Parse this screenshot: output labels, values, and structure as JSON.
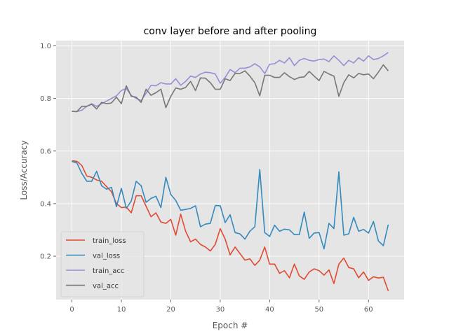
{
  "chart_data": {
    "type": "line",
    "title": "conv layer before and after pooling",
    "xlabel": "Epoch #",
    "ylabel": "Loss/Accuracy",
    "xlim": [
      -3.2,
      67.2
    ],
    "ylim": [
      0.035,
      1.02
    ],
    "xticks": [
      0,
      10,
      20,
      30,
      40,
      50,
      60
    ],
    "yticks": [
      0.2,
      0.4,
      0.6,
      0.8,
      1.0
    ],
    "ytick_labels": [
      "0.2",
      "0.4",
      "0.6",
      "0.8",
      "1.0"
    ],
    "grid": true,
    "legend_position": "lower-left",
    "x": [
      0,
      1,
      2,
      3,
      4,
      5,
      6,
      7,
      8,
      9,
      10,
      11,
      12,
      13,
      14,
      15,
      16,
      17,
      18,
      19,
      20,
      21,
      22,
      23,
      24,
      25,
      26,
      27,
      28,
      29,
      30,
      31,
      32,
      33,
      34,
      35,
      36,
      37,
      38,
      39,
      40,
      41,
      42,
      43,
      44,
      45,
      46,
      47,
      48,
      49,
      50,
      51,
      52,
      53,
      54,
      55,
      56,
      57,
      58,
      59,
      60,
      61,
      62,
      63,
      64
    ],
    "series": [
      {
        "name": "train_loss",
        "color": "#E24A33",
        "values": [
          0.563,
          0.561,
          0.545,
          0.505,
          0.5,
          0.49,
          0.485,
          0.465,
          0.445,
          0.4,
          0.385,
          0.387,
          0.365,
          0.43,
          0.43,
          0.39,
          0.35,
          0.365,
          0.33,
          0.325,
          0.34,
          0.28,
          0.36,
          0.295,
          0.255,
          0.265,
          0.245,
          0.235,
          0.22,
          0.245,
          0.305,
          0.265,
          0.205,
          0.235,
          0.21,
          0.185,
          0.19,
          0.165,
          0.185,
          0.235,
          0.17,
          0.17,
          0.135,
          0.145,
          0.118,
          0.17,
          0.125,
          0.112,
          0.14,
          0.152,
          0.145,
          0.128,
          0.148,
          0.096,
          0.17,
          0.193,
          0.157,
          0.152,
          0.118,
          0.14,
          0.108,
          0.122,
          0.117,
          0.12,
          0.068
        ]
      },
      {
        "name": "val_loss",
        "color": "#348ABD",
        "values": [
          0.56,
          0.555,
          0.515,
          0.485,
          0.485,
          0.523,
          0.468,
          0.455,
          0.462,
          0.388,
          0.458,
          0.382,
          0.41,
          0.485,
          0.468,
          0.405,
          0.42,
          0.428,
          0.385,
          0.5,
          0.435,
          0.412,
          0.375,
          0.378,
          0.382,
          0.392,
          0.312,
          0.322,
          0.325,
          0.393,
          0.392,
          0.328,
          0.358,
          0.29,
          0.285,
          0.265,
          0.295,
          0.312,
          0.53,
          0.29,
          0.275,
          0.318,
          0.295,
          0.303,
          0.3,
          0.282,
          0.282,
          0.368,
          0.268,
          0.288,
          0.29,
          0.228,
          0.325,
          0.305,
          0.521,
          0.28,
          0.285,
          0.348,
          0.295,
          0.302,
          0.288,
          0.332,
          0.258,
          0.24,
          0.32
        ]
      },
      {
        "name": "train_acc",
        "color": "#988ED5",
        "values": [
          0.751,
          0.75,
          0.755,
          0.77,
          0.78,
          0.77,
          0.78,
          0.79,
          0.8,
          0.81,
          0.83,
          0.838,
          0.812,
          0.8,
          0.792,
          0.82,
          0.85,
          0.848,
          0.86,
          0.855,
          0.855,
          0.875,
          0.85,
          0.865,
          0.885,
          0.88,
          0.893,
          0.9,
          0.898,
          0.893,
          0.858,
          0.88,
          0.91,
          0.898,
          0.915,
          0.915,
          0.92,
          0.932,
          0.92,
          0.895,
          0.93,
          0.932,
          0.945,
          0.935,
          0.955,
          0.925,
          0.945,
          0.952,
          0.945,
          0.942,
          0.948,
          0.95,
          0.94,
          0.962,
          0.945,
          0.925,
          0.945,
          0.935,
          0.955,
          0.942,
          0.962,
          0.948,
          0.952,
          0.962,
          0.975
        ]
      },
      {
        "name": "val_acc",
        "color": "#777777",
        "values": [
          0.751,
          0.75,
          0.77,
          0.77,
          0.778,
          0.76,
          0.785,
          0.78,
          0.783,
          0.805,
          0.78,
          0.848,
          0.808,
          0.805,
          0.785,
          0.835,
          0.812,
          0.822,
          0.835,
          0.765,
          0.808,
          0.84,
          0.835,
          0.842,
          0.865,
          0.83,
          0.878,
          0.877,
          0.86,
          0.835,
          0.835,
          0.875,
          0.868,
          0.895,
          0.895,
          0.905,
          0.885,
          0.86,
          0.81,
          0.888,
          0.888,
          0.88,
          0.88,
          0.898,
          0.883,
          0.872,
          0.88,
          0.882,
          0.903,
          0.885,
          0.868,
          0.903,
          0.893,
          0.885,
          0.808,
          0.86,
          0.89,
          0.878,
          0.895,
          0.89,
          0.893,
          0.875,
          0.9,
          0.928,
          0.905
        ]
      }
    ]
  }
}
